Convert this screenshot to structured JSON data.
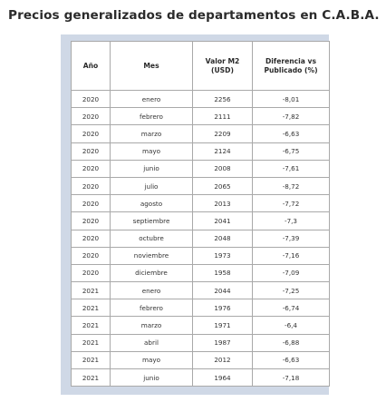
{
  "title": "Precios generalizados de departamentos en C.A.B.A.",
  "headers": {
    "year": "Año",
    "month": "Mes",
    "value": "Valor M2 (USD)",
    "diff": "Diferencia vs Publicado (%)"
  },
  "rows": [
    {
      "year": "2020",
      "month": "enero",
      "value": "2256",
      "diff": "-8,01"
    },
    {
      "year": "2020",
      "month": "febrero",
      "value": "2111",
      "diff": "-7,82"
    },
    {
      "year": "2020",
      "month": "marzo",
      "value": "2209",
      "diff": "-6,63"
    },
    {
      "year": "2020",
      "month": "mayo",
      "value": "2124",
      "diff": "-6,75"
    },
    {
      "year": "2020",
      "month": "junio",
      "value": "2008",
      "diff": "-7,61"
    },
    {
      "year": "2020",
      "month": "julio",
      "value": "2065",
      "diff": "-8,72"
    },
    {
      "year": "2020",
      "month": "agosto",
      "value": "2013",
      "diff": "-7,72"
    },
    {
      "year": "2020",
      "month": "septiembre",
      "value": "2041",
      "diff": "-7,3"
    },
    {
      "year": "2020",
      "month": "octubre",
      "value": "2048",
      "diff": "-7,39"
    },
    {
      "year": "2020",
      "month": "noviembre",
      "value": "1973",
      "diff": "-7,16"
    },
    {
      "year": "2020",
      "month": "diciembre",
      "value": "1958",
      "diff": "-7,09"
    },
    {
      "year": "2021",
      "month": "enero",
      "value": "2044",
      "diff": "-7,25"
    },
    {
      "year": "2021",
      "month": "febrero",
      "value": "1976",
      "diff": "-6,74"
    },
    {
      "year": "2021",
      "month": "marzo",
      "value": "1971",
      "diff": "-6,4"
    },
    {
      "year": "2021",
      "month": "abril",
      "value": "1987",
      "diff": "-6,88"
    },
    {
      "year": "2021",
      "month": "mayo",
      "value": "2012",
      "diff": "-6,63"
    },
    {
      "year": "2021",
      "month": "junio",
      "value": "1964",
      "diff": "-7,18"
    }
  ]
}
